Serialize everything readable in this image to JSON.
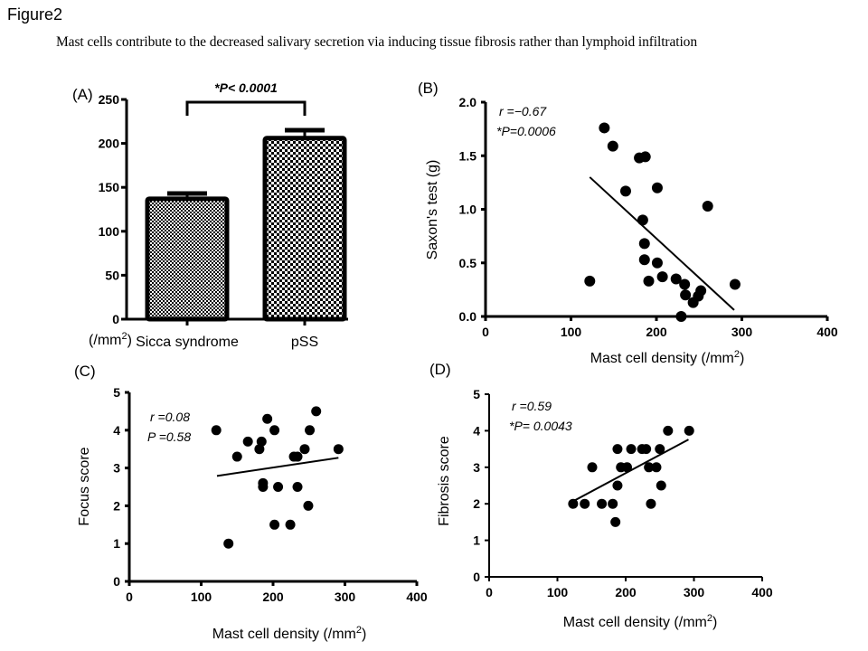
{
  "figure_label": "Figure2",
  "caption": "Mast cells contribute to the decreased salivary  secretion via inducing tissue fibrosis rather than lymphoid infiltration",
  "chart_data": [
    {
      "id": "A",
      "panel_label": "(A)",
      "type": "bar",
      "categories": [
        "Sicca syndrome",
        "pSS"
      ],
      "values": [
        137,
        206
      ],
      "error_upper": [
        143,
        215
      ],
      "ylabel": "(/mm2)",
      "ylabel_text": "(/mm",
      "ylabel_sup": "2",
      "ylabel_close": ")",
      "ylim": [
        0,
        250
      ],
      "yticks": [
        "0",
        "50",
        "100",
        "150",
        "200",
        "250"
      ],
      "yticks_values": [
        0,
        50,
        100,
        150,
        200,
        250
      ],
      "annotation": "*P< 0.0001",
      "pattern": "checkerboard"
    },
    {
      "id": "B",
      "panel_label": "(B)",
      "type": "scatter",
      "xlabel": "Mast cell density (/mm2)",
      "xlabel_text": "Mast cell density (/mm",
      "xlabel_sup": "2",
      "xlabel_close": ")",
      "ylabel": "Saxon's test (g)",
      "xlim": [
        0,
        400
      ],
      "ylim": [
        0,
        2.0
      ],
      "xticks": [
        "0",
        "100",
        "200",
        "300",
        "400"
      ],
      "xticks_values": [
        0,
        100,
        200,
        300,
        400
      ],
      "yticks": [
        "0.0",
        "0.5",
        "1.0",
        "1.5",
        "2.0"
      ],
      "yticks_values": [
        0,
        0.5,
        1.0,
        1.5,
        2.0
      ],
      "stat_r": "r =−0.67",
      "stat_p": "*P=0.0006",
      "points": [
        [
          139,
          1.76
        ],
        [
          149,
          1.59
        ],
        [
          180,
          1.48
        ],
        [
          187,
          1.49
        ],
        [
          164,
          1.17
        ],
        [
          201,
          1.2
        ],
        [
          260,
          1.03
        ],
        [
          184,
          0.9
        ],
        [
          186,
          0.68
        ],
        [
          186,
          0.53
        ],
        [
          201,
          0.5
        ],
        [
          122,
          0.33
        ],
        [
          191,
          0.33
        ],
        [
          207,
          0.37
        ],
        [
          223,
          0.35
        ],
        [
          233,
          0.3
        ],
        [
          234,
          0.2
        ],
        [
          243,
          0.13
        ],
        [
          249,
          0.19
        ],
        [
          252,
          0.24
        ],
        [
          229,
          0.0
        ],
        [
          292,
          0.3
        ]
      ],
      "trendline": [
        [
          122,
          1.3
        ],
        [
          291,
          0.06
        ]
      ]
    },
    {
      "id": "C",
      "panel_label": "(C)",
      "type": "scatter",
      "xlabel": "Mast cell density (/mm2)",
      "xlabel_text": "Mast cell density (/mm",
      "xlabel_sup": "2",
      "xlabel_close": ")",
      "ylabel": "Focus score",
      "xlim": [
        0,
        400
      ],
      "ylim": [
        0,
        5
      ],
      "xticks": [
        "0",
        "100",
        "200",
        "300",
        "400"
      ],
      "xticks_values": [
        0,
        100,
        200,
        300,
        400
      ],
      "yticks": [
        "0",
        "1",
        "2",
        "3",
        "4",
        "5"
      ],
      "yticks_values": [
        0,
        1,
        2,
        3,
        4,
        5
      ],
      "stat_r": "r =0.08",
      "stat_p": "P =0.58",
      "points": [
        [
          121,
          4.0
        ],
        [
          138,
          1.0
        ],
        [
          150,
          3.3
        ],
        [
          165,
          3.7
        ],
        [
          181,
          3.5
        ],
        [
          184,
          3.7
        ],
        [
          192,
          4.3
        ],
        [
          186,
          2.6
        ],
        [
          186,
          2.5
        ],
        [
          202,
          4.0
        ],
        [
          202,
          1.5
        ],
        [
          207,
          2.5
        ],
        [
          224,
          1.5
        ],
        [
          229,
          3.3
        ],
        [
          234,
          3.3
        ],
        [
          234,
          2.5
        ],
        [
          244,
          3.5
        ],
        [
          249,
          2.0
        ],
        [
          251,
          4.0
        ],
        [
          260,
          4.5
        ],
        [
          291,
          3.5
        ]
      ],
      "trendline": [
        [
          122,
          2.79
        ],
        [
          291,
          3.27
        ]
      ]
    },
    {
      "id": "D",
      "panel_label": "(D)",
      "type": "scatter",
      "xlabel": "Mast cell density (/mm2)",
      "xlabel_text": "Mast cell density (/mm",
      "xlabel_sup": "2",
      "xlabel_close": ")",
      "ylabel": "Fibrosis score",
      "xlim": [
        0,
        400
      ],
      "ylim": [
        0,
        5
      ],
      "xticks": [
        "0",
        "100",
        "200",
        "300",
        "400"
      ],
      "xticks_values": [
        0,
        100,
        200,
        300,
        400
      ],
      "yticks": [
        "0",
        "1",
        "2",
        "3",
        "4",
        "5"
      ],
      "yticks_values": [
        0,
        1,
        2,
        3,
        4,
        5
      ],
      "stat_r": "r =0.59",
      "stat_p": "*P= 0.0043",
      "points": [
        [
          123,
          2.0
        ],
        [
          140,
          2.0
        ],
        [
          151,
          3.0
        ],
        [
          165,
          2.0
        ],
        [
          181,
          2.0
        ],
        [
          185,
          1.5
        ],
        [
          188,
          3.5
        ],
        [
          188,
          2.5
        ],
        [
          193,
          3.0
        ],
        [
          202,
          3.0
        ],
        [
          208,
          3.5
        ],
        [
          224,
          3.5
        ],
        [
          230,
          3.5
        ],
        [
          234,
          3.0
        ],
        [
          237,
          2.0
        ],
        [
          245,
          3.0
        ],
        [
          250,
          3.5
        ],
        [
          252,
          2.5
        ],
        [
          262,
          4.0
        ],
        [
          293,
          4.0
        ]
      ],
      "trendline": [
        [
          124,
          2.08
        ],
        [
          292,
          3.76
        ]
      ]
    }
  ]
}
